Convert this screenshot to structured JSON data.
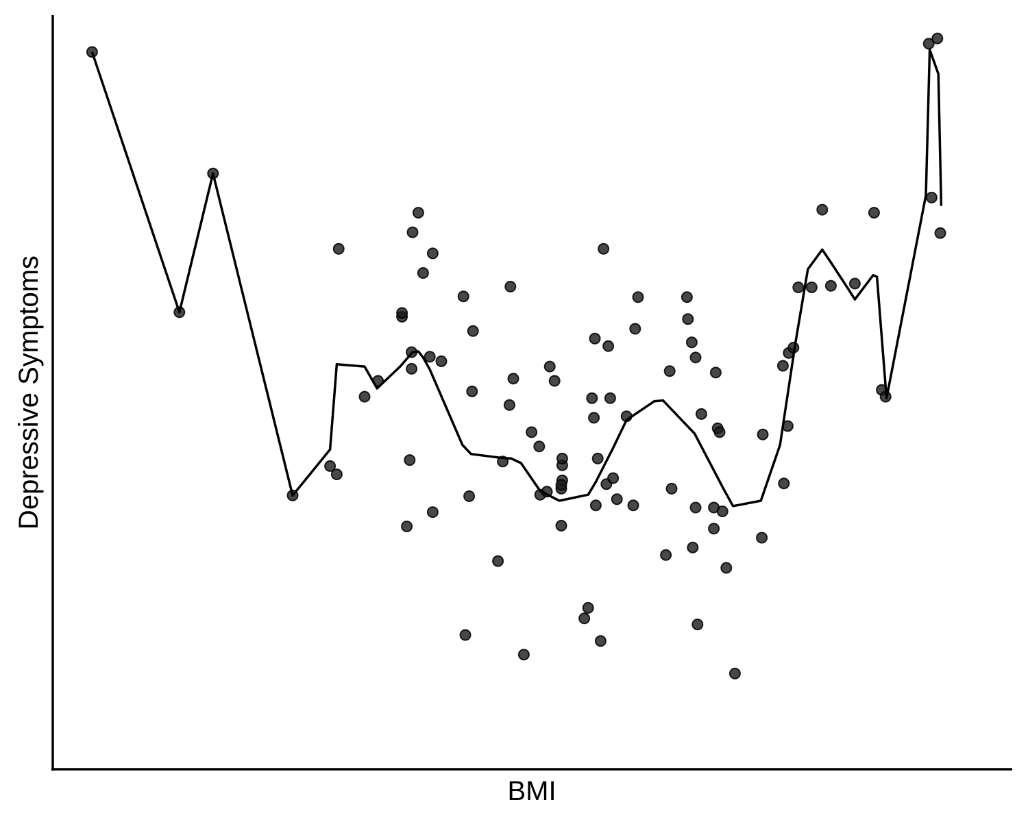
{
  "chart_data": {
    "type": "scatter",
    "title": "",
    "xlabel": "BMI",
    "ylabel": "Depressive Symptoms",
    "xlim": [
      0,
      100
    ],
    "ylim": [
      0,
      100
    ],
    "x_ticks_shown": false,
    "y_ticks_shown": false,
    "grid": false,
    "legend": "none",
    "point_color": "#1a1a1a",
    "line_color": "#000000",
    "points": [
      [
        4.1,
        95.1
      ],
      [
        13.2,
        60.6
      ],
      [
        16.7,
        79.0
      ],
      [
        25.0,
        36.3
      ],
      [
        28.9,
        40.2
      ],
      [
        29.6,
        39.1
      ],
      [
        29.8,
        69.0
      ],
      [
        32.5,
        49.4
      ],
      [
        33.9,
        51.5
      ],
      [
        36.4,
        60.0
      ],
      [
        36.4,
        60.5
      ],
      [
        36.9,
        32.2
      ],
      [
        37.2,
        41.0
      ],
      [
        37.4,
        53.1
      ],
      [
        37.4,
        55.3
      ],
      [
        37.5,
        71.2
      ],
      [
        38.1,
        73.8
      ],
      [
        38.6,
        65.8
      ],
      [
        39.3,
        54.7
      ],
      [
        39.6,
        34.1
      ],
      [
        39.6,
        68.4
      ],
      [
        40.5,
        54.1
      ],
      [
        42.8,
        62.7
      ],
      [
        43.0,
        17.8
      ],
      [
        43.4,
        36.2
      ],
      [
        43.7,
        50.1
      ],
      [
        43.8,
        58.1
      ],
      [
        46.4,
        27.6
      ],
      [
        46.9,
        40.8
      ],
      [
        47.6,
        48.3
      ],
      [
        47.7,
        64.0
      ],
      [
        48.0,
        51.8
      ],
      [
        49.1,
        15.2
      ],
      [
        49.9,
        44.7
      ],
      [
        50.7,
        42.8
      ],
      [
        50.8,
        36.4
      ],
      [
        51.5,
        36.8
      ],
      [
        51.8,
        53.4
      ],
      [
        52.3,
        51.5
      ],
      [
        53.0,
        32.3
      ],
      [
        53.0,
        37.2
      ],
      [
        53.1,
        40.3
      ],
      [
        53.1,
        41.2
      ],
      [
        53.1,
        38.3
      ],
      [
        53.0,
        37.7
      ],
      [
        55.4,
        20.0
      ],
      [
        55.8,
        21.4
      ],
      [
        56.2,
        49.2
      ],
      [
        56.4,
        46.6
      ],
      [
        56.5,
        57.1
      ],
      [
        56.6,
        35.0
      ],
      [
        56.8,
        41.2
      ],
      [
        57.1,
        17.0
      ],
      [
        57.4,
        69.0
      ],
      [
        57.7,
        37.8
      ],
      [
        57.9,
        56.1
      ],
      [
        58.1,
        49.2
      ],
      [
        58.4,
        38.6
      ],
      [
        58.8,
        35.8
      ],
      [
        59.8,
        46.8
      ],
      [
        60.5,
        35.0
      ],
      [
        60.7,
        58.4
      ],
      [
        61.0,
        62.6
      ],
      [
        63.9,
        28.4
      ],
      [
        64.3,
        52.8
      ],
      [
        64.5,
        37.2
      ],
      [
        66.1,
        62.6
      ],
      [
        66.2,
        59.7
      ],
      [
        66.7,
        29.4
      ],
      [
        66.6,
        56.6
      ],
      [
        67.0,
        54.6
      ],
      [
        67.2,
        19.2
      ],
      [
        67.0,
        34.7
      ],
      [
        67.6,
        47.1
      ],
      [
        69.1,
        52.6
      ],
      [
        68.9,
        31.9
      ],
      [
        68.9,
        34.7
      ],
      [
        69.3,
        45.2
      ],
      [
        69.5,
        44.7
      ],
      [
        69.8,
        34.2
      ],
      [
        70.2,
        26.7
      ],
      [
        71.1,
        12.7
      ],
      [
        74.0,
        44.4
      ],
      [
        73.9,
        30.7
      ],
      [
        76.1,
        53.5
      ],
      [
        76.2,
        37.9
      ],
      [
        76.7,
        55.2
      ],
      [
        76.6,
        45.5
      ],
      [
        77.2,
        55.9
      ],
      [
        77.7,
        63.9
      ],
      [
        79.1,
        63.9
      ],
      [
        80.2,
        74.2
      ],
      [
        81.1,
        64.1
      ],
      [
        83.6,
        64.4
      ],
      [
        85.6,
        73.8
      ],
      [
        86.4,
        50.3
      ],
      [
        86.8,
        49.4
      ],
      [
        91.3,
        96.2
      ],
      [
        91.6,
        75.8
      ],
      [
        92.2,
        96.9
      ],
      [
        92.5,
        71.1
      ]
    ],
    "trend_line": [
      [
        4.1,
        95.1
      ],
      [
        13.2,
        60.6
      ],
      [
        16.7,
        79.0
      ],
      [
        25.0,
        36.3
      ],
      [
        28.9,
        42.4
      ],
      [
        29.6,
        53.7
      ],
      [
        32.5,
        53.4
      ],
      [
        33.8,
        50.5
      ],
      [
        36.2,
        53.4
      ],
      [
        37.5,
        55.3
      ],
      [
        38.1,
        55.4
      ],
      [
        38.6,
        54.6
      ],
      [
        39.3,
        53.0
      ],
      [
        42.7,
        43.0
      ],
      [
        43.6,
        41.8
      ],
      [
        46.7,
        41.3
      ],
      [
        47.8,
        41.2
      ],
      [
        48.8,
        40.6
      ],
      [
        50.8,
        36.9
      ],
      [
        52.8,
        35.6
      ],
      [
        55.8,
        36.4
      ],
      [
        56.6,
        38.1
      ],
      [
        58.4,
        42.6
      ],
      [
        59.8,
        46.3
      ],
      [
        62.7,
        48.8
      ],
      [
        63.6,
        48.9
      ],
      [
        66.9,
        44.5
      ],
      [
        69.9,
        37.2
      ],
      [
        70.9,
        34.9
      ],
      [
        73.8,
        35.6
      ],
      [
        75.8,
        43.0
      ],
      [
        77.4,
        56.5
      ],
      [
        78.7,
        66.3
      ],
      [
        80.2,
        68.9
      ],
      [
        81.1,
        67.2
      ],
      [
        82.9,
        63.7
      ],
      [
        83.6,
        62.3
      ],
      [
        85.5,
        65.5
      ],
      [
        85.9,
        65.3
      ],
      [
        86.9,
        49.2
      ],
      [
        91.0,
        76.1
      ],
      [
        91.4,
        95.4
      ],
      [
        91.6,
        94.7
      ],
      [
        92.3,
        92.2
      ],
      [
        92.6,
        74.7
      ]
    ]
  }
}
